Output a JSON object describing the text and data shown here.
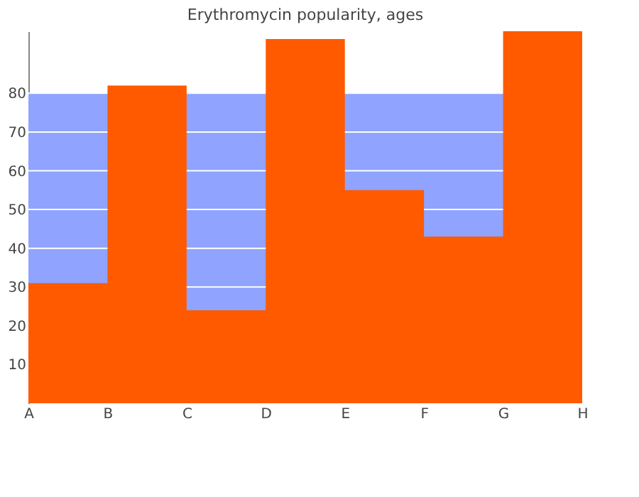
{
  "chart_data": {
    "type": "area",
    "title": "Erythromycin popularity, ages",
    "categories": [
      "A",
      "B",
      "C",
      "D",
      "E",
      "F",
      "G",
      "H"
    ],
    "series": [
      {
        "color": "#ff5a00",
        "values": [
          31,
          82,
          24,
          94,
          55,
          43,
          96,
          56
        ]
      }
    ],
    "ylim": [
      0,
      96
    ],
    "yticks": [
      10,
      20,
      30,
      40,
      50,
      60,
      70,
      80
    ],
    "bands": [
      {
        "axis": "y",
        "from": 0,
        "to": 80,
        "color": "#8fa3ff"
      }
    ],
    "grid": "y"
  }
}
